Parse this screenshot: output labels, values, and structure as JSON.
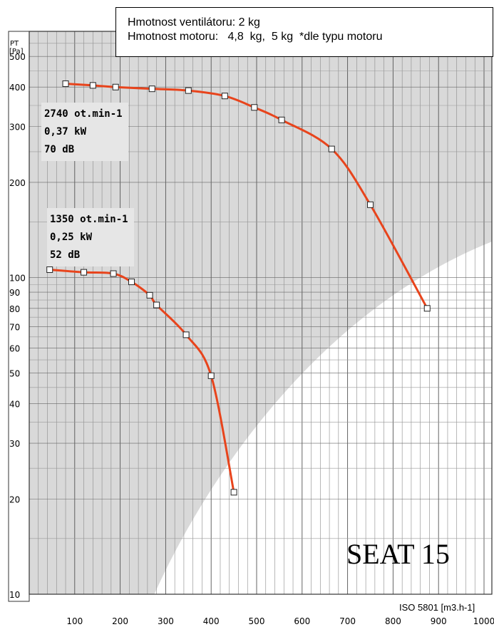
{
  "info_box": {
    "line1": "Hmotnost ventilátoru: 2 kg",
    "line2": "Hmotnost motoru:   4,8  kg,  5 kg  *dle typu motoru"
  },
  "model_label": "SEAT 15",
  "chart_data": {
    "type": "line",
    "yscale": "log",
    "xscale": "linear",
    "ylabel": "PT\n[Pa]",
    "xlabel": "ISO 5801 [m3.h-1]",
    "xlim": [
      0,
      1050
    ],
    "ylim": [
      10,
      600
    ],
    "x_ticks": [
      100,
      200,
      300,
      400,
      500,
      600,
      700,
      800,
      900,
      1000
    ],
    "y_ticks": [
      10,
      20,
      30,
      40,
      50,
      60,
      70,
      80,
      90,
      100,
      200,
      300,
      400,
      500
    ],
    "grid": true,
    "series": [
      {
        "name": "2740 ot.min-1",
        "annotation": [
          "2740 ot.min-1",
          "0,37 kW",
          "70 dB"
        ],
        "color": "#e8441c",
        "points": [
          [
            80,
            410
          ],
          [
            140,
            405
          ],
          [
            190,
            400
          ],
          [
            270,
            395
          ],
          [
            350,
            390
          ],
          [
            430,
            375
          ],
          [
            495,
            345
          ],
          [
            555,
            315
          ],
          [
            665,
            255
          ],
          [
            750,
            170
          ],
          [
            875,
            80
          ]
        ]
      },
      {
        "name": "1350 ot.min-1",
        "annotation": [
          "1350 ot.min-1",
          "0,25 kW",
          "52 dB"
        ],
        "color": "#e8441c",
        "points": [
          [
            45,
            106
          ],
          [
            120,
            104
          ],
          [
            185,
            103
          ],
          [
            225,
            97
          ],
          [
            265,
            88
          ],
          [
            280,
            82
          ],
          [
            345,
            66
          ],
          [
            400,
            49
          ],
          [
            450,
            21
          ]
        ]
      }
    ]
  }
}
